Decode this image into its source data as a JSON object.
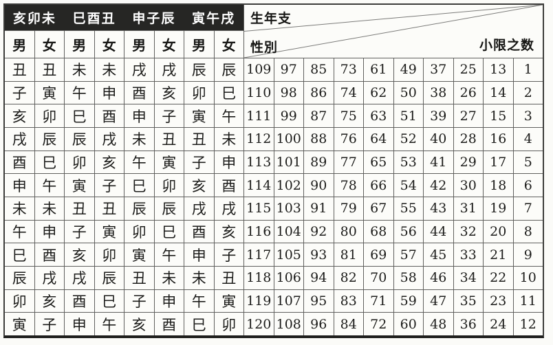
{
  "table": {
    "title_semantic": "minor-limit-lookup-table",
    "group_headers": [
      "亥卯未",
      "巳酉丑",
      "申子辰",
      "寅午戌"
    ],
    "gender_headers": [
      "男",
      "女",
      "男",
      "女",
      "男",
      "女",
      "男",
      "女"
    ],
    "corner": {
      "birth_year_branch_label": "生年支",
      "gender_label": "性別",
      "minor_limit_number_label": "小限之数"
    },
    "rows": [
      {
        "branches": [
          "丑",
          "丑",
          "未",
          "未",
          "戌",
          "戌",
          "辰",
          "辰"
        ],
        "numbers": [
          109,
          97,
          85,
          73,
          61,
          49,
          37,
          25,
          13,
          1
        ]
      },
      {
        "branches": [
          "子",
          "寅",
          "午",
          "申",
          "酉",
          "亥",
          "卯",
          "巳"
        ],
        "numbers": [
          110,
          98,
          86,
          74,
          62,
          50,
          38,
          26,
          14,
          2
        ]
      },
      {
        "branches": [
          "亥",
          "卯",
          "巳",
          "酉",
          "申",
          "子",
          "寅",
          "午"
        ],
        "numbers": [
          111,
          99,
          87,
          75,
          63,
          51,
          39,
          27,
          15,
          3
        ]
      },
      {
        "branches": [
          "戌",
          "辰",
          "辰",
          "戌",
          "未",
          "丑",
          "丑",
          "未"
        ],
        "numbers": [
          112,
          100,
          88,
          76,
          64,
          52,
          40,
          28,
          16,
          4
        ]
      },
      {
        "branches": [
          "酉",
          "巳",
          "卯",
          "亥",
          "午",
          "寅",
          "子",
          "申"
        ],
        "numbers": [
          113,
          101,
          89,
          77,
          65,
          53,
          41,
          29,
          17,
          5
        ]
      },
      {
        "branches": [
          "申",
          "午",
          "寅",
          "子",
          "巳",
          "卯",
          "亥",
          "酉"
        ],
        "numbers": [
          114,
          102,
          90,
          78,
          66,
          54,
          42,
          30,
          18,
          6
        ]
      },
      {
        "branches": [
          "未",
          "未",
          "丑",
          "丑",
          "辰",
          "辰",
          "戌",
          "戌"
        ],
        "numbers": [
          115,
          103,
          91,
          79,
          67,
          55,
          43,
          31,
          19,
          7
        ]
      },
      {
        "branches": [
          "午",
          "申",
          "子",
          "寅",
          "卯",
          "巳",
          "酉",
          "亥"
        ],
        "numbers": [
          116,
          104,
          92,
          80,
          68,
          56,
          44,
          32,
          20,
          8
        ]
      },
      {
        "branches": [
          "巳",
          "酉",
          "亥",
          "卯",
          "寅",
          "午",
          "申",
          "子"
        ],
        "numbers": [
          117,
          105,
          93,
          81,
          69,
          57,
          45,
          33,
          21,
          9
        ]
      },
      {
        "branches": [
          "辰",
          "戌",
          "戌",
          "辰",
          "丑",
          "未",
          "未",
          "丑"
        ],
        "numbers": [
          118,
          106,
          94,
          82,
          70,
          58,
          46,
          34,
          22,
          10
        ]
      },
      {
        "branches": [
          "卯",
          "亥",
          "酉",
          "巳",
          "子",
          "申",
          "午",
          "寅"
        ],
        "numbers": [
          119,
          107,
          95,
          83,
          71,
          59,
          47,
          35,
          23,
          11
        ]
      },
      {
        "branches": [
          "寅",
          "子",
          "申",
          "午",
          "亥",
          "酉",
          "巳",
          "卯"
        ],
        "numbers": [
          120,
          108,
          96,
          84,
          72,
          60,
          48,
          36,
          24,
          12
        ]
      }
    ],
    "colors": {
      "header_band_bg": "#262624",
      "header_band_text": "#ffffff",
      "grid_line": "#5f5f5d",
      "paper": "#fcfcf9",
      "text": "#1c1c1a"
    }
  }
}
